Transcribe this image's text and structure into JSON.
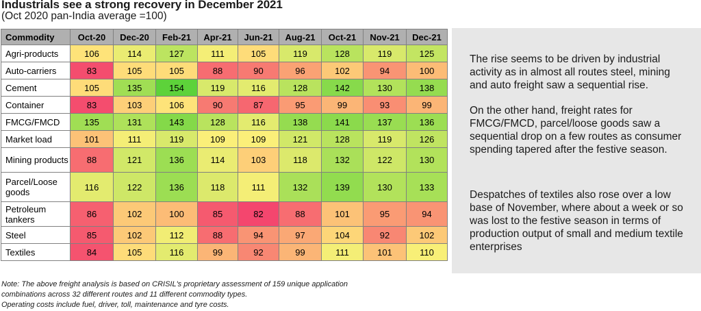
{
  "chart_data": {
    "type": "heatmap",
    "title": "Industrials see a strong recovery in December 2021",
    "subtitle": "(Oct 2020 pan-India average =100)",
    "corner_label": "Commodity",
    "columns": [
      "Oct-20",
      "Dec-20",
      "Feb-21",
      "Apr-21",
      "Jun-21",
      "Aug-21",
      "Oct-21",
      "Nov-21",
      "Dec-21"
    ],
    "rows": [
      {
        "name": "Agri-products",
        "values": [
          106,
          114,
          127,
          111,
          105,
          119,
          128,
          119,
          125
        ]
      },
      {
        "name": "Auto-carriers",
        "values": [
          83,
          105,
          105,
          88,
          90,
          96,
          102,
          94,
          100
        ]
      },
      {
        "name": "Cement",
        "values": [
          105,
          135,
          154,
          119,
          116,
          128,
          142,
          130,
          138
        ]
      },
      {
        "name": "Container",
        "values": [
          83,
          103,
          106,
          90,
          87,
          95,
          99,
          93,
          99
        ]
      },
      {
        "name": "FMCG/FMCD",
        "values": [
          135,
          131,
          143,
          128,
          116,
          138,
          141,
          137,
          136
        ]
      },
      {
        "name": "Market load",
        "values": [
          101,
          111,
          119,
          109,
          109,
          121,
          128,
          119,
          126
        ]
      },
      {
        "name": "Mining products",
        "values": [
          88,
          121,
          136,
          114,
          103,
          118,
          132,
          122,
          130
        ]
      },
      {
        "name": "Parcel/Loose goods",
        "values": [
          116,
          122,
          136,
          118,
          111,
          132,
          139,
          130,
          133
        ]
      },
      {
        "name": "Petroleum tankers",
        "values": [
          86,
          102,
          100,
          85,
          82,
          88,
          101,
          95,
          94
        ]
      },
      {
        "name": "Steel",
        "values": [
          85,
          102,
          112,
          88,
          94,
          97,
          104,
          92,
          102
        ]
      },
      {
        "name": "Textiles",
        "values": [
          84,
          105,
          116,
          99,
          92,
          99,
          111,
          101,
          110
        ]
      }
    ],
    "color_scale": {
      "low": "#f4466e",
      "mid": "#fff07a",
      "high": "#5dd23a",
      "min": 82,
      "max": 154
    }
  },
  "commentary": [
    "The rise seems to be driven by industrial activity as in almost all routes steel, mining and auto freight saw a sequential rise.",
    "On the other hand, freight rates for FMCG/FMCD, parcel/loose goods saw a sequential drop on a few routes as consumer spending tapered after the festive season.",
    "Despatches of textiles also rose over a low base of November, where about a week or so was lost to the festive season in terms of production output of small and medium textile enterprises"
  ],
  "notes": [
    "Note: The above freight analysis is based on CRISIL's proprietary assessment of 159 unique application",
    "combinations across 32 different routes and 11 different commodity types.",
    "Operating costs include fuel, driver, toll, maintenance and tyre costs."
  ]
}
